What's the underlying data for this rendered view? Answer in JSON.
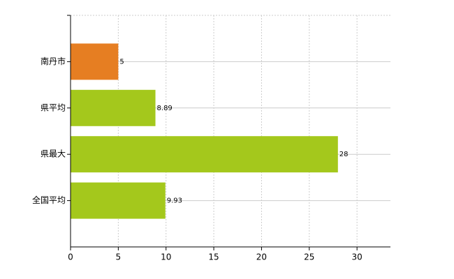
{
  "chart_data": {
    "type": "bar",
    "orientation": "horizontal",
    "categories": [
      "南丹市",
      "県平均",
      "県最大",
      "全国平均"
    ],
    "values": [
      5,
      8.89,
      28,
      9.93
    ],
    "colors": [
      "#e67e22",
      "#a4c81c",
      "#a4c81c",
      "#a4c81c"
    ],
    "xlim": [
      0,
      33.5
    ],
    "xticks": [
      0,
      5,
      10,
      15,
      20,
      25,
      30
    ],
    "grid": true
  }
}
